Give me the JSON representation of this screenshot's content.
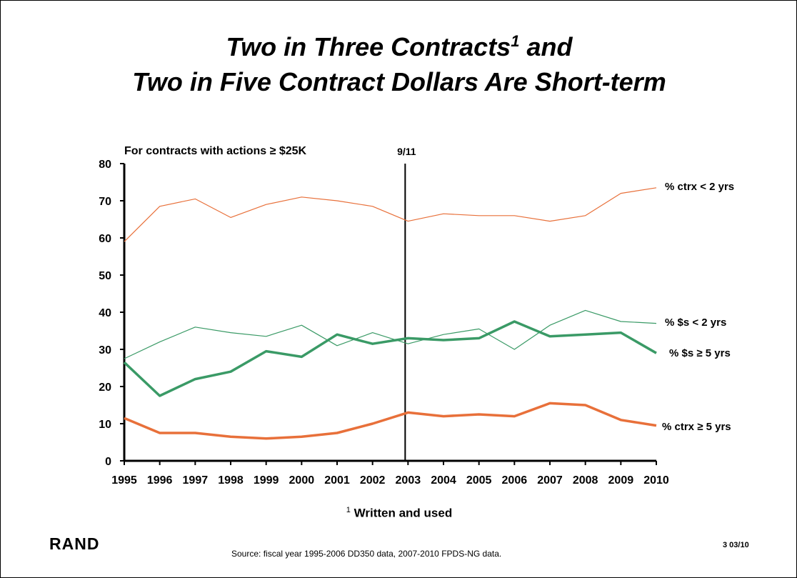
{
  "title": {
    "line1": "Two in Three Contracts",
    "superscript": "1",
    "line1_end": " and",
    "line2": "Two in Five Contract Dollars Are Short-term"
  },
  "footnote": {
    "marker": "1",
    "text": "Written and used"
  },
  "logo": "RAND",
  "source": "Source: fiscal year 1995-2006 DD350 data, 2007-2010 FPDS-NG data.",
  "page_number": "3  03/10",
  "chart_data": {
    "type": "line",
    "subtitle": "For contracts with actions ≥ $25K",
    "x": [
      1995,
      1996,
      1997,
      1998,
      1999,
      2000,
      2001,
      2002,
      2003,
      2004,
      2005,
      2006,
      2007,
      2008,
      2009,
      2010
    ],
    "ylim": [
      0,
      80
    ],
    "yticks": [
      0,
      10,
      20,
      30,
      40,
      50,
      60,
      70,
      80
    ],
    "grid": false,
    "annotations": [
      {
        "x": 2003,
        "label": "9/11"
      }
    ],
    "series": [
      {
        "name": "% ctrx < 2 yrs",
        "color": "#e8703a",
        "width": 1.2,
        "values": [
          59,
          68.5,
          70.5,
          65.5,
          69,
          71,
          70,
          68.5,
          64.5,
          66.5,
          66,
          66,
          64.5,
          66,
          72,
          73.5
        ]
      },
      {
        "name": "% $s < 2 yrs",
        "color": "#3a9a66",
        "width": 1.2,
        "values": [
          27.5,
          32,
          36,
          34.5,
          33.5,
          36.5,
          31,
          34.5,
          31.5,
          34,
          35.5,
          30,
          36.5,
          40.5,
          37.5,
          37
        ]
      },
      {
        "name": "% $s ≥ 5 yrs",
        "color": "#3a9a66",
        "width": 3.5,
        "values": [
          26.5,
          17.5,
          22,
          24,
          29.5,
          28,
          34,
          31.5,
          33,
          32.5,
          33,
          37.5,
          33.5,
          34,
          34.5,
          29
        ]
      },
      {
        "name": "% ctrx ≥ 5 yrs",
        "color": "#e8703a",
        "width": 3.5,
        "values": [
          11.5,
          7.5,
          7.5,
          6.5,
          6,
          6.5,
          7.5,
          10,
          13,
          12,
          12.5,
          12,
          15.5,
          15,
          11,
          9.5
        ]
      }
    ]
  }
}
